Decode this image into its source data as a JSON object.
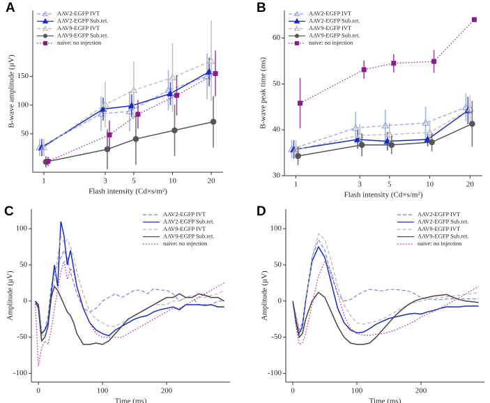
{
  "chart_data": [
    {
      "type": "line",
      "panel_label": "A",
      "xlabel": "Flash intensity (Cd×s/m²)",
      "ylabel": "B-wave amplitude (µV)",
      "xscale": "log",
      "x": [
        1,
        3,
        5,
        10,
        20
      ],
      "xlim": [
        0.82,
        24.7
      ],
      "xticks": [
        1,
        3,
        5,
        10,
        20
      ],
      "ylim": [
        -17,
        265
      ],
      "yticks": [
        50,
        100,
        150
      ],
      "legend": "upper left",
      "series": [
        {
          "name": "AAV2-EGFP IVT",
          "color": "#8c9de6",
          "dash": "dashed",
          "marker": "triangle-open",
          "values": [
            26,
            85,
            89,
            126,
            150
          ],
          "errors": [
            15,
            30,
            35,
            35,
            40
          ]
        },
        {
          "name": "AAV2-EGFP Sub.ret.",
          "color": "#1a2bbf",
          "dash": "solid",
          "marker": "triangle",
          "values": [
            26,
            93,
            99,
            120,
            158
          ],
          "errors": [
            15,
            20,
            20,
            20,
            25
          ]
        },
        {
          "name": "AAV9-EGFP IVT",
          "color": "#b3b3b3",
          "dash": "dashed",
          "marker": "triangle-open",
          "values": [
            26,
            101,
            126,
            148,
            177
          ],
          "errors": [
            15,
            40,
            50,
            60,
            70
          ]
        },
        {
          "name": "AAV9-EGFP Sub.ret.",
          "color": "#555555",
          "dash": "solid",
          "marker": "circle",
          "values": [
            1,
            23,
            41,
            56,
            71
          ],
          "errors": [
            10,
            35,
            45,
            45,
            45
          ]
        },
        {
          "name": "naive: no injection",
          "color": "#8b1a8b",
          "dash": "dotted",
          "marker": "square",
          "values": [
            2,
            48,
            84,
            117,
            155
          ],
          "errors": [
            8,
            25,
            25,
            35,
            40
          ]
        }
      ]
    },
    {
      "type": "line",
      "panel_label": "B",
      "xlabel": "Flash intensity (Cd×s/m²)",
      "ylabel": "B-wave peak time (ms)",
      "xscale": "log",
      "x": [
        1,
        3,
        5,
        10,
        20
      ],
      "xlim": [
        0.82,
        24.7
      ],
      "xticks": [
        1,
        3,
        5,
        10,
        20
      ],
      "ylim": [
        30,
        66
      ],
      "yticks": [
        30,
        40,
        50,
        60
      ],
      "legend": "upper left",
      "series": [
        {
          "name": "AAV2-EGFP IVT",
          "color": "#8c9de6",
          "dash": "dashed",
          "marker": "triangle-open",
          "values": [
            35.8,
            40.4,
            40.9,
            41.5,
            44.9
          ],
          "errors": [
            2,
            3.5,
            3.5,
            3.5,
            3
          ]
        },
        {
          "name": "AAV2-EGFP Sub.ret.",
          "color": "#1a2bbf",
          "dash": "solid",
          "marker": "triangle",
          "values": [
            35.7,
            37.9,
            37.5,
            37.9,
            44.2
          ],
          "errors": [
            2,
            2,
            2,
            1.5,
            3
          ]
        },
        {
          "name": "AAV9-EGFP IVT",
          "color": "#b3b3b3",
          "dash": "dashed",
          "marker": "triangle-open",
          "values": [
            35.7,
            38.8,
            39,
            39.4,
            44.5
          ],
          "errors": [
            2,
            2.5,
            2.5,
            2.5,
            3
          ]
        },
        {
          "name": "AAV9-EGFP Sub.ret.",
          "color": "#555555",
          "dash": "solid",
          "marker": "circle",
          "values": [
            34.3,
            36.7,
            36.7,
            37.3,
            41.3
          ],
          "errors": [
            2,
            2.5,
            2,
            2,
            5
          ]
        },
        {
          "name": "naive: no injection",
          "color": "#8b1a8b",
          "dash": "dotted",
          "marker": "square",
          "values": [
            45.8,
            53.1,
            54.5,
            54.9,
            64
          ],
          "errors": [
            5.5,
            2,
            2,
            2.5,
            0.5
          ]
        }
      ]
    },
    {
      "type": "line",
      "panel_label": "C",
      "xlabel": "Time (ms)",
      "ylabel": "Amplitude (µV)",
      "xscale": "linear",
      "x": [
        -5,
        0,
        5,
        10,
        15,
        20,
        25,
        30,
        35,
        40,
        45,
        50,
        55,
        60,
        70,
        80,
        90,
        100,
        110,
        120,
        130,
        140,
        150,
        160,
        170,
        180,
        190,
        200,
        210,
        220,
        230,
        240,
        250,
        260,
        270,
        280,
        290
      ],
      "xlim": [
        -11,
        299
      ],
      "xticks": [
        0,
        100,
        200
      ],
      "ylim": [
        -112,
        127
      ],
      "yticks": [
        -100,
        -50,
        0,
        50,
        100
      ],
      "legend": "upper right",
      "series": [
        {
          "name": "AAV2-EGFP IVT",
          "color": "#6f84e8",
          "dash": "dashed",
          "values": [
            0,
            -5,
            -45,
            -40,
            -20,
            20,
            40,
            50,
            60,
            70,
            60,
            40,
            25,
            10,
            -10,
            -15,
            -10,
            0,
            5,
            10,
            5,
            10,
            15,
            15,
            10,
            17,
            15,
            15,
            10,
            0,
            5,
            5,
            -5,
            -5,
            -5,
            0,
            0
          ]
        },
        {
          "name": "AAV2-EGFP Sub.ret.",
          "color": "#1a2bbf",
          "dash": "solid",
          "values": [
            0,
            -5,
            -45,
            -40,
            -30,
            10,
            50,
            20,
            110,
            90,
            50,
            70,
            45,
            20,
            -10,
            -30,
            -40,
            -45,
            -48,
            -40,
            -35,
            -30,
            -25,
            -22,
            -20,
            -15,
            -12,
            -10,
            -8,
            -12,
            -5,
            -5,
            -5,
            -6,
            -5,
            -8,
            -8
          ]
        },
        {
          "name": "AAV9-EGFP IVT",
          "color": "#b3b3b3",
          "dash": "dashed",
          "values": [
            0,
            -10,
            -45,
            -50,
            -35,
            0,
            30,
            60,
            90,
            80,
            85,
            75,
            60,
            40,
            10,
            -15,
            -25,
            -30,
            -35,
            -35,
            -30,
            -25,
            -20,
            -15,
            -10,
            -5,
            -5,
            -5,
            0,
            0,
            5,
            8,
            5,
            5,
            8,
            10,
            15
          ]
        },
        {
          "name": "AAV9-EGFP Sub.ret.",
          "color": "#444444",
          "dash": "solid",
          "values": [
            0,
            -10,
            -55,
            -50,
            -35,
            5,
            20,
            15,
            5,
            -5,
            -15,
            -20,
            -30,
            -45,
            -60,
            -60,
            -58,
            -60,
            -55,
            -45,
            -35,
            -25,
            -20,
            -15,
            -10,
            -5,
            0,
            5,
            5,
            10,
            5,
            5,
            10,
            8,
            5,
            5,
            0
          ]
        },
        {
          "name": "naive: no injection",
          "color": "#b0179b",
          "dash": "dotted",
          "values": [
            0,
            -90,
            -65,
            -55,
            -60,
            -40,
            -10,
            15,
            40,
            55,
            30,
            45,
            40,
            20,
            -10,
            -30,
            -45,
            -50,
            -50,
            -50,
            -50,
            -45,
            -40,
            -35,
            -30,
            -25,
            -20,
            -15,
            -10,
            -10,
            -5,
            0,
            5,
            10,
            15,
            20,
            25
          ]
        }
      ]
    },
    {
      "type": "line",
      "panel_label": "D",
      "xlabel": "Time (ms)",
      "ylabel": "Amplitude (µV)",
      "xscale": "linear",
      "x": [
        0,
        5,
        10,
        15,
        20,
        30,
        40,
        50,
        60,
        70,
        80,
        90,
        100,
        110,
        120,
        130,
        140,
        150,
        160,
        170,
        180,
        190,
        200,
        210,
        220,
        230,
        240,
        250,
        260,
        270,
        280,
        290
      ],
      "xlim": [
        -11,
        299
      ],
      "xticks": [
        0,
        100,
        200
      ],
      "ylim": [
        -112,
        127
      ],
      "yticks": [
        -100,
        -50,
        0,
        50,
        100
      ],
      "legend": "upper right",
      "series": [
        {
          "name": "AAV2-EGFP IVT",
          "color": "#6f84e8",
          "dash": "dashed",
          "values": [
            0,
            -20,
            -40,
            -30,
            0,
            60,
            85,
            70,
            35,
            10,
            0,
            2,
            8,
            13,
            16,
            15,
            14,
            16,
            16,
            15,
            14,
            10,
            5,
            3,
            2,
            2,
            3,
            3,
            3,
            3,
            3,
            3
          ]
        },
        {
          "name": "AAV2-EGFP Sub.ret.",
          "color": "#1a2bbf",
          "dash": "solid",
          "values": [
            0,
            -25,
            -45,
            -35,
            0,
            55,
            75,
            60,
            25,
            -10,
            -30,
            -40,
            -44,
            -43,
            -38,
            -32,
            -28,
            -24,
            -22,
            -20,
            -18,
            -17,
            -18,
            -15,
            -13,
            -10,
            -8,
            -8,
            -8,
            -7,
            -7,
            -7
          ]
        },
        {
          "name": "AAV9-EGFP IVT",
          "color": "#b3b3b3",
          "dash": "dashed",
          "values": [
            0,
            -25,
            -45,
            -40,
            -5,
            60,
            93,
            85,
            55,
            20,
            -5,
            -20,
            -30,
            -32,
            -30,
            -28,
            -25,
            -20,
            -15,
            -10,
            -5,
            -2,
            0,
            2,
            4,
            5,
            6,
            7,
            8,
            9,
            10,
            12
          ]
        },
        {
          "name": "AAV9-EGFP Sub.ret.",
          "color": "#444444",
          "dash": "solid",
          "values": [
            0,
            -30,
            -50,
            -45,
            -25,
            0,
            12,
            5,
            -15,
            -35,
            -50,
            -58,
            -60,
            -60,
            -58,
            -50,
            -40,
            -30,
            -20,
            -12,
            -5,
            0,
            3,
            5,
            7,
            8,
            9,
            5,
            2,
            0,
            -1,
            -2
          ]
        },
        {
          "name": "naive: no injection",
          "color": "#b0179b",
          "dash": "dotted",
          "values": [
            0,
            -35,
            -60,
            -58,
            -45,
            -5,
            35,
            55,
            40,
            10,
            -20,
            -38,
            -45,
            -47,
            -47,
            -46,
            -45,
            -43,
            -40,
            -36,
            -32,
            -28,
            -22,
            -18,
            -14,
            -10,
            -5,
            0,
            5,
            10,
            15,
            20
          ]
        }
      ]
    }
  ]
}
